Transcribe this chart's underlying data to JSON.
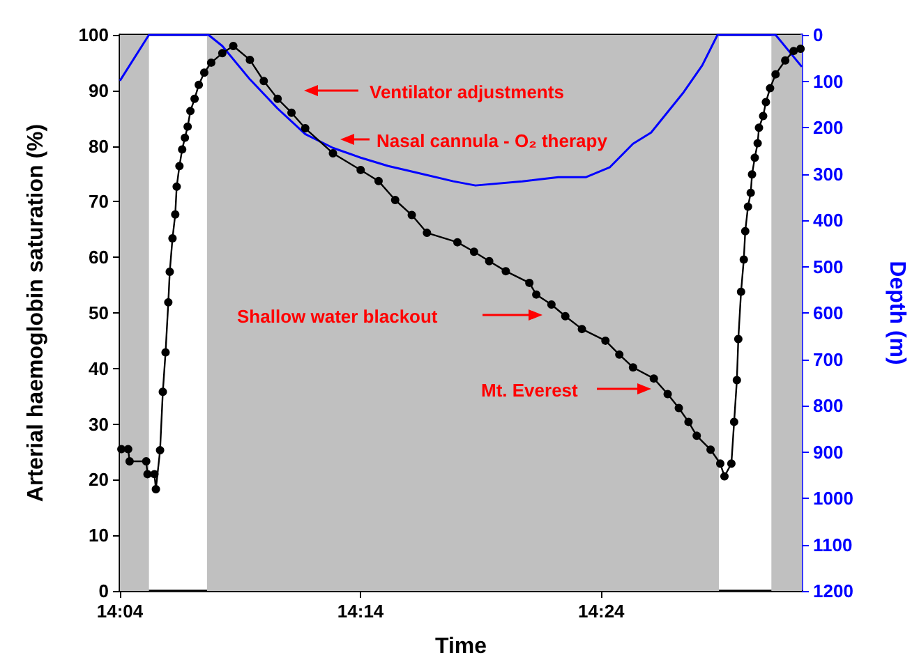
{
  "chart_data": {
    "type": "line",
    "xlabel": "Time",
    "ylabel": "Arterial haemoglobin saturation (%)",
    "y2label": "Depth (m)",
    "xlim": [
      14.0667,
      14.5389
    ],
    "xticks": [
      {
        "value": 14.0667,
        "label": "14:04"
      },
      {
        "value": 14.2333,
        "label": "14:14"
      },
      {
        "value": 14.4,
        "label": "14:24"
      }
    ],
    "ylim": [
      0,
      100
    ],
    "yticks": [
      0,
      10,
      20,
      30,
      40,
      50,
      60,
      70,
      80,
      90,
      100
    ],
    "y2lim": [
      1200,
      0
    ],
    "y2ticks": [
      0,
      100,
      200,
      300,
      400,
      500,
      600,
      700,
      800,
      900,
      1000,
      1100,
      1200
    ],
    "marker": "circle",
    "grid": false,
    "series": [
      {
        "color": "#000000",
        "x": [
          14.0677,
          14.0724,
          14.0734,
          14.0849,
          14.0858,
          14.0906,
          14.0916,
          14.0945,
          14.0964,
          14.0983,
          14.1002,
          14.1012,
          14.1031,
          14.105,
          14.106,
          14.1079,
          14.1098,
          14.1117,
          14.1136,
          14.1155,
          14.1184,
          14.1213,
          14.1251,
          14.1299,
          14.1376,
          14.1452,
          14.1567,
          14.1663,
          14.1759,
          14.1855,
          14.195,
          14.2142,
          14.2334,
          14.2458,
          14.2573,
          14.2688,
          14.2793,
          14.3004,
          14.3119,
          14.3224,
          14.3339,
          14.3502,
          14.355,
          14.3655,
          14.3751,
          14.3866,
          14.4029,
          14.4125,
          14.422,
          14.4364,
          14.446,
          14.4537,
          14.4604,
          14.4661,
          14.4757,
          14.4824,
          14.4853,
          14.4901,
          14.492,
          14.4939,
          14.4949,
          14.4968,
          14.4987,
          14.4997,
          14.5016,
          14.5035,
          14.5044,
          14.5063,
          14.5083,
          14.5092,
          14.5121,
          14.514,
          14.5169,
          14.5207,
          14.5274,
          14.5332,
          14.538
        ],
        "values": [
          25.5,
          25.5,
          23.3,
          23.3,
          21.0,
          21.0,
          18.3,
          25.3,
          35.8,
          42.9,
          51.9,
          57.4,
          63.4,
          67.7,
          72.7,
          76.4,
          79.4,
          81.5,
          83.5,
          86.3,
          88.5,
          91.0,
          93.2,
          95.0,
          96.7,
          98.0,
          95.5,
          91.7,
          88.5,
          86.0,
          83.2,
          78.7,
          75.7,
          73.7,
          70.3,
          67.6,
          64.4,
          62.7,
          61.0,
          59.3,
          57.5,
          55.4,
          53.3,
          51.5,
          49.4,
          47.1,
          45.0,
          42.5,
          40.2,
          38.2,
          35.4,
          32.9,
          30.4,
          27.9,
          25.4,
          22.9,
          20.6,
          22.9,
          30.4,
          37.9,
          45.3,
          53.8,
          59.6,
          64.7,
          69.1,
          71.6,
          74.9,
          77.9,
          80.5,
          83.3,
          85.4,
          87.9,
          90.4,
          92.9,
          95.4,
          97.1,
          97.5
        ]
      },
      {
        "color": "#0000ff",
        "axis": "y2",
        "marker": "none",
        "x": [
          14.0667,
          14.0868,
          14.128,
          14.1376,
          14.1567,
          14.1759,
          14.195,
          14.2142,
          14.2334,
          14.2525,
          14.265,
          14.2975,
          14.3129,
          14.3454,
          14.3703,
          14.3895,
          14.4058,
          14.422,
          14.4345,
          14.4565,
          14.4699,
          14.4805,
          14.5207,
          14.5389
        ],
        "values": [
          99,
          0,
          0,
          24,
          96,
          159,
          214,
          244,
          265,
          283,
          292,
          316,
          325,
          316,
          307,
          307,
          286,
          235,
          211,
          126,
          66,
          0,
          0,
          69
        ]
      }
    ],
    "bands": [
      {
        "axis": "x",
        "from": 14.0667,
        "to": 14.0868,
        "color": "#c0c0c0"
      },
      {
        "axis": "x",
        "from": 14.127,
        "to": 14.4815,
        "color": "#c0c0c0"
      },
      {
        "axis": "x",
        "from": 14.5178,
        "to": 14.5389,
        "color": "#c0c0c0"
      }
    ],
    "annotations": [
      "Ventilator adjustments",
      "Nasal cannula - O₂ therapy",
      "Shallow water blackout",
      "Mt. Everest"
    ]
  }
}
